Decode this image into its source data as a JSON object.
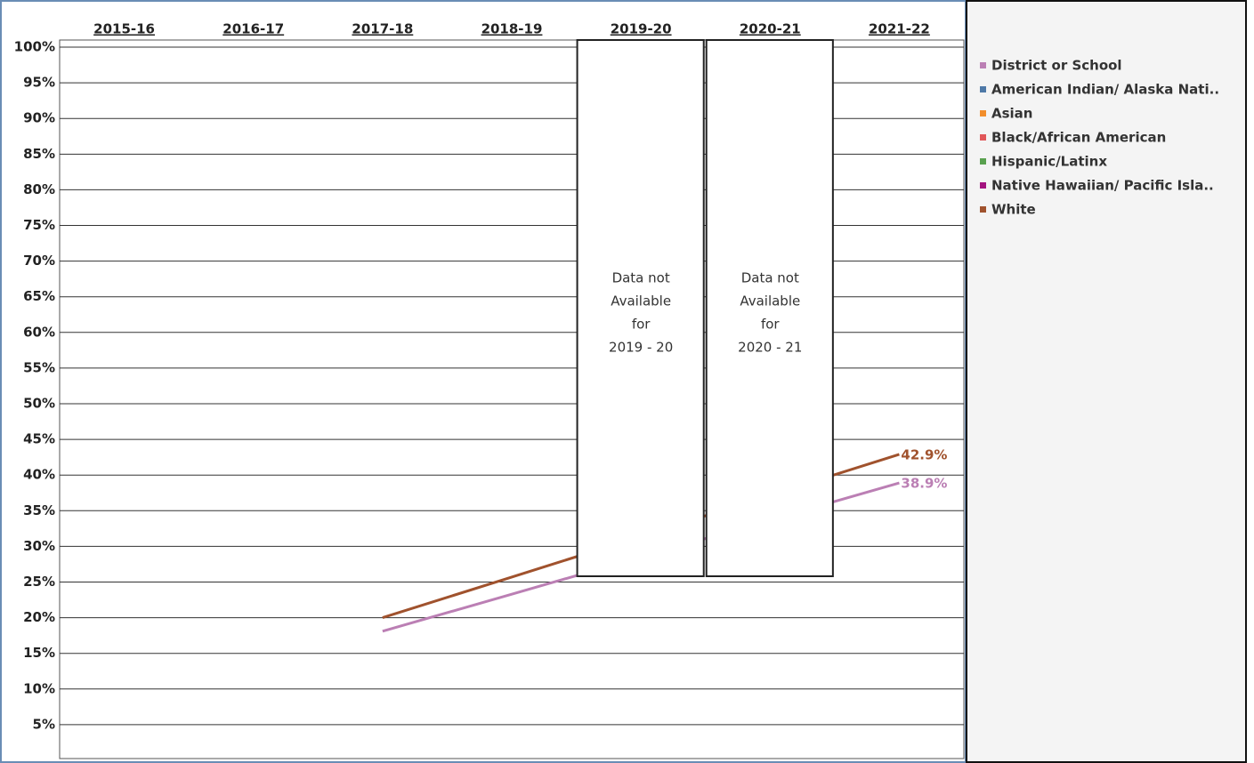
{
  "chart_data": {
    "type": "line",
    "categories": [
      "2015-16",
      "2016-17",
      "2017-18",
      "2018-19",
      "2019-20",
      "2020-21",
      "2021-22"
    ],
    "series": [
      {
        "name": "District or School",
        "color": "#bb7fb4",
        "values": [
          null,
          null,
          18.1,
          23.3,
          28.5,
          33.7,
          38.9
        ],
        "value_labels": [
          null,
          null,
          null,
          null,
          null,
          null,
          "38.9%"
        ]
      },
      {
        "name": "American Indian/ Alaska Nati..",
        "color": "#4e79a7",
        "values": [
          null,
          null,
          null,
          null,
          null,
          null,
          null
        ]
      },
      {
        "name": "Asian",
        "color": "#f28e2b",
        "values": [
          null,
          null,
          null,
          null,
          null,
          null,
          null
        ]
      },
      {
        "name": "Black/African American",
        "color": "#e15759",
        "values": [
          null,
          null,
          null,
          null,
          null,
          null,
          null
        ]
      },
      {
        "name": "Hispanic/Latinx",
        "color": "#59a14f",
        "values": [
          null,
          null,
          null,
          null,
          null,
          null,
          null
        ]
      },
      {
        "name": "Native Hawaiian/ Pacific Isla..",
        "color": "#a3137f",
        "values": [
          null,
          null,
          null,
          null,
          null,
          null,
          null
        ]
      },
      {
        "name": "White",
        "color": "#a0522d",
        "values": [
          null,
          null,
          20.0,
          25.7,
          31.4,
          37.2,
          42.9
        ],
        "value_labels": [
          null,
          null,
          null,
          null,
          null,
          null,
          "42.9%"
        ]
      }
    ],
    "annotations": [
      {
        "category": 4,
        "lines": [
          "Data not",
          "Available",
          "for",
          "2019 - 20"
        ]
      },
      {
        "category": 5,
        "lines": [
          "Data not",
          "Available",
          "for",
          "2020 - 21"
        ]
      }
    ],
    "ylim": [
      0,
      101
    ],
    "yticks": [
      {
        "value": 5,
        "label": "5%"
      },
      {
        "value": 10,
        "label": "10%"
      },
      {
        "value": 15,
        "label": "15%"
      },
      {
        "value": 20,
        "label": "20%"
      },
      {
        "value": 25,
        "label": "25%"
      },
      {
        "value": 30,
        "label": "30%"
      },
      {
        "value": 35,
        "label": "35%"
      },
      {
        "value": 40,
        "label": "40%"
      },
      {
        "value": 45,
        "label": "45%"
      },
      {
        "value": 50,
        "label": "50%"
      },
      {
        "value": 55,
        "label": "55%"
      },
      {
        "value": 60,
        "label": "60%"
      },
      {
        "value": 65,
        "label": "65%"
      },
      {
        "value": 70,
        "label": "70%"
      },
      {
        "value": 75,
        "label": "75%"
      },
      {
        "value": 80,
        "label": "80%"
      },
      {
        "value": 85,
        "label": "85%"
      },
      {
        "value": 90,
        "label": "90%"
      },
      {
        "value": 95,
        "label": "95%"
      },
      {
        "value": 100,
        "label": "100%"
      }
    ],
    "grid": true,
    "legend": "right"
  }
}
